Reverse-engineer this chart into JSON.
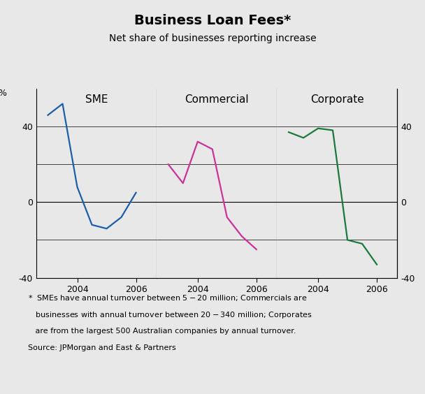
{
  "title": "Business Loan Fees*",
  "subtitle": "Net share of businesses reporting increase",
  "ylim": [
    -40,
    60
  ],
  "yticks": [
    -40,
    -20,
    0,
    20,
    40
  ],
  "ytick_labels": [
    "-40",
    "",
    "0",
    "",
    "40"
  ],
  "panel_labels": [
    "SME",
    "Commercial",
    "Corporate"
  ],
  "sme": {
    "x": [
      2003.0,
      2003.5,
      2004.0,
      2004.5,
      2005.0,
      2005.5,
      2006.0
    ],
    "y": [
      46,
      52,
      8,
      -12,
      -14,
      -8,
      5
    ],
    "color": "#1a5fa8"
  },
  "commercial": {
    "x": [
      2003.0,
      2003.5,
      2004.0,
      2004.5,
      2005.0,
      2005.5,
      2006.0
    ],
    "y": [
      20,
      10,
      32,
      28,
      -8,
      -18,
      -25
    ],
    "color": "#cc3399"
  },
  "corporate": {
    "x": [
      2003.0,
      2003.5,
      2004.0,
      2004.5,
      2005.0,
      2005.5,
      2006.0
    ],
    "y": [
      37,
      34,
      39,
      38,
      -20,
      -22,
      -33
    ],
    "color": "#1a7a3c"
  },
  "footnote_line1": "*  SMEs have annual turnover between $5-$20 million; Commercials are",
  "footnote_line2": "   businesses with annual turnover between $20-$340 million; Corporates",
  "footnote_line3": "   are from the largest 500 Australian companies by annual turnover.",
  "footnote_line4": "Source: JPMorgan and East & Partners",
  "background_color": "#e8e8e8",
  "line_width": 1.6
}
